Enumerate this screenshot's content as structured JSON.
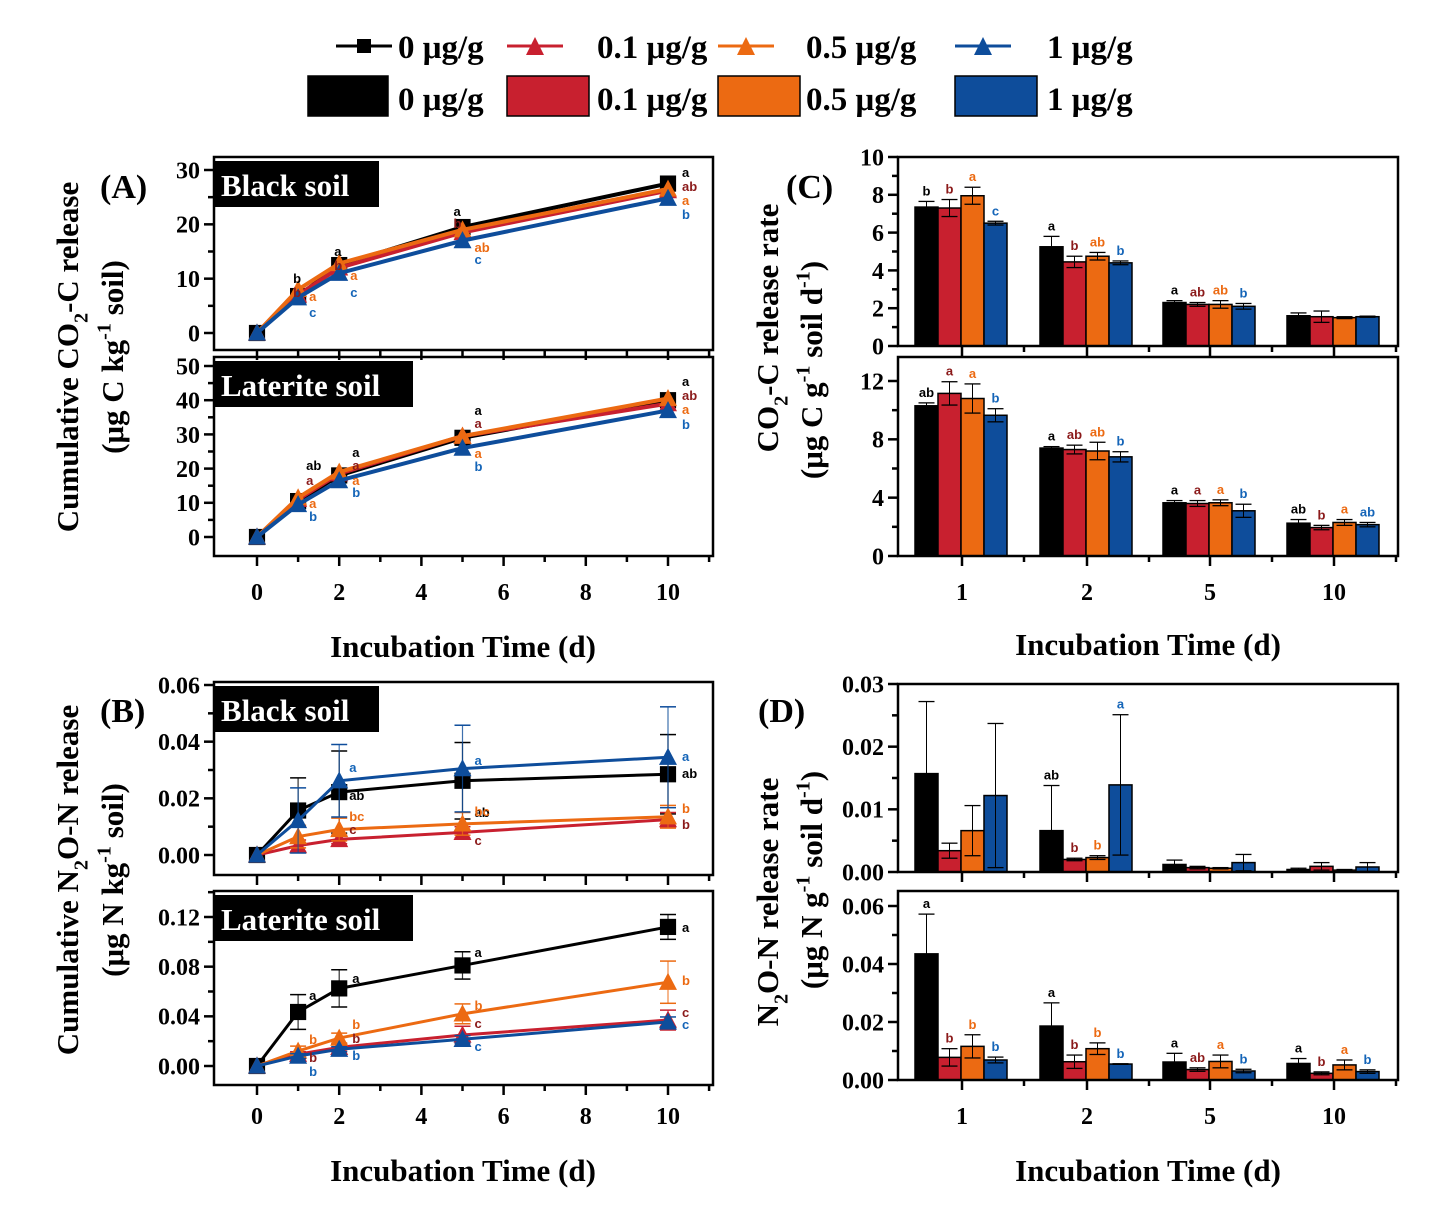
{
  "colors": {
    "0": "#000000",
    "0.1": "#c8202f",
    "0.5": "#ec6a12",
    "1": "#0e4d9b",
    "letter_0": "#000000",
    "letter_0.1": "#8b1a1a",
    "letter_0.5": "#ec6a12",
    "letter_1": "#1565b8"
  },
  "legend": {
    "line_entries": [
      {
        "key": "0",
        "label": "0 μg/g",
        "marker": "square"
      },
      {
        "key": "0.1",
        "label": "0.1 μg/g",
        "marker": "triangle"
      },
      {
        "key": "0.5",
        "label": "0.5 μg/g",
        "marker": "triangle"
      },
      {
        "key": "1",
        "label": "1 μg/g",
        "marker": "triangle"
      }
    ],
    "bar_entries": [
      {
        "key": "0",
        "label": "0 μg/g"
      },
      {
        "key": "0.1",
        "label": "0.1 μg/g"
      },
      {
        "key": "0.5",
        "label": "0.5 μg/g"
      },
      {
        "key": "1",
        "label": "1 μg/g"
      }
    ]
  },
  "chart_data": [
    {
      "panel": "A",
      "type": "line",
      "label": "(A)",
      "ylabel_line1": "Cumulative CO2-C release",
      "ylabel_line2": "(μg C kg-1 soil)",
      "xlabel": "Incubation Time (d)",
      "x": [
        0,
        1,
        2,
        5,
        10
      ],
      "xlim": [
        -1,
        11
      ],
      "xticks": [
        0,
        2,
        4,
        6,
        8,
        10
      ],
      "subplots": [
        {
          "title": "Black soil",
          "ylim": [
            -3,
            32
          ],
          "yticks": [
            0,
            10,
            20,
            30
          ],
          "series": [
            {
              "key": "0",
              "name": "0 μg/g",
              "values": [
                0,
                6.8,
                12.5,
                19.5,
                27.5
              ],
              "letters": [
                "",
                "b",
                "a",
                "a",
                "a"
              ]
            },
            {
              "key": "0.1",
              "name": "0.1 μg/g",
              "values": [
                0,
                7.0,
                12.0,
                18.5,
                26.2
              ],
              "letters": [
                "",
                "b",
                "b",
                "b",
                "ab"
              ]
            },
            {
              "key": "0.5",
              "name": "0.5 μg/g",
              "values": [
                0,
                8.0,
                12.8,
                19.0,
                26.5
              ],
              "letters": [
                "",
                "a",
                "a",
                "ab",
                "a"
              ]
            },
            {
              "key": "1",
              "name": "1 μg/g",
              "values": [
                0,
                6.5,
                11.0,
                17.0,
                24.8
              ],
              "letters": [
                "",
                "c",
                "c",
                "c",
                "b"
              ]
            }
          ]
        },
        {
          "title": "Laterite soil",
          "ylim": [
            -5,
            50
          ],
          "yticks": [
            0,
            10,
            20,
            30,
            40,
            50
          ],
          "series": [
            {
              "key": "0",
              "name": "0 μg/g",
              "values": [
                0,
                10.5,
                18.0,
                29.0,
                40.0
              ],
              "letters": [
                "",
                "ab",
                "a",
                "a",
                "a"
              ]
            },
            {
              "key": "0.1",
              "name": "0.1 μg/g",
              "values": [
                0,
                11.0,
                18.5,
                29.5,
                39.0
              ],
              "letters": [
                "",
                "a",
                "a",
                "a",
                "ab"
              ]
            },
            {
              "key": "0.5",
              "name": "0.5 μg/g",
              "values": [
                0,
                11.5,
                19.0,
                29.5,
                40.5
              ],
              "letters": [
                "",
                "a",
                "a",
                "a",
                "a"
              ]
            },
            {
              "key": "1",
              "name": "1 μg/g",
              "values": [
                0,
                9.5,
                16.5,
                26.0,
                37.0
              ],
              "letters": [
                "",
                "b",
                "b",
                "b",
                "b"
              ]
            }
          ]
        }
      ]
    },
    {
      "panel": "B",
      "type": "line",
      "label": "(B)",
      "ylabel_line1": "Cumulative N2O-N release",
      "ylabel_line2": "(μg N kg-1 soil)",
      "xlabel": "Incubation Time (d)",
      "x": [
        0,
        1,
        2,
        5,
        10
      ],
      "xlim": [
        -1,
        11
      ],
      "xticks": [
        0,
        2,
        4,
        6,
        8,
        10
      ],
      "subplots": [
        {
          "title": "Black soil",
          "ylim": [
            -0.005,
            0.06
          ],
          "yticks": [
            0.0,
            0.02,
            0.04,
            0.06
          ],
          "series": [
            {
              "key": "0",
              "name": "0 μg/g",
              "values": [
                0,
                0.0157,
                0.0222,
                0.0262,
                0.0285
              ],
              "errors": [
                0,
                0.0115,
                0.0145,
                0.0135,
                0.014
              ],
              "letters": [
                "",
                "",
                "ab",
                "ab",
                "ab"
              ]
            },
            {
              "key": "0.1",
              "name": "0.1 μg/g",
              "values": [
                0,
                0.0033,
                0.0055,
                0.008,
                0.0125
              ],
              "errors": [
                0,
                0.002,
                0.0015,
                0.002,
                0.0025
              ],
              "letters": [
                "",
                "",
                "c",
                "c",
                "b"
              ]
            },
            {
              "key": "0.5",
              "name": "0.5 μg/g",
              "values": [
                0,
                0.0065,
                0.009,
                0.011,
                0.0135
              ],
              "errors": [
                0,
                0.004,
                0.004,
                0.004,
                0.004
              ],
              "letters": [
                "",
                "",
                "bc",
                "bc",
                "b"
              ]
            },
            {
              "key": "1",
              "name": "1 μg/g",
              "values": [
                0,
                0.0122,
                0.0262,
                0.0305,
                0.0345
              ],
              "errors": [
                0,
                0.0115,
                0.0128,
                0.0153,
                0.0178
              ],
              "letters": [
                "",
                "",
                "a",
                "a",
                "a"
              ]
            }
          ]
        },
        {
          "title": "Laterite soil",
          "ylim": [
            -0.008,
            0.14
          ],
          "yticks": [
            0.0,
            0.04,
            0.08,
            0.12
          ],
          "series": [
            {
              "key": "0",
              "name": "0 μg/g",
              "values": [
                0,
                0.0435,
                0.0625,
                0.081,
                0.112
              ],
              "errors": [
                0,
                0.014,
                0.015,
                0.011,
                0.01
              ],
              "letters": [
                "",
                "a",
                "a",
                "a",
                "a"
              ]
            },
            {
              "key": "0.1",
              "name": "0.1 μg/g",
              "values": [
                0,
                0.0095,
                0.015,
                0.025,
                0.037
              ],
              "errors": [
                0,
                0.002,
                0.003,
                0.007,
                0.008
              ],
              "letters": [
                "",
                "b",
                "b",
                "c",
                "c"
              ]
            },
            {
              "key": "0.5",
              "name": "0.5 μg/g",
              "values": [
                0,
                0.012,
                0.0225,
                0.042,
                0.0675
              ],
              "errors": [
                0,
                0.004,
                0.004,
                0.008,
                0.017
              ],
              "letters": [
                "",
                "b",
                "b",
                "b",
                "b"
              ]
            },
            {
              "key": "1",
              "name": "1 μg/g",
              "values": [
                0,
                0.008,
                0.0135,
                0.0215,
                0.0355
              ],
              "errors": [
                0,
                0.002,
                0.002,
                0.003,
                0.004
              ],
              "letters": [
                "",
                "b",
                "b",
                "c",
                "c"
              ]
            }
          ]
        }
      ]
    },
    {
      "panel": "C",
      "type": "bar",
      "label": "(C)",
      "ylabel_line1": "CO2-C release rate",
      "ylabel_line2": "(μg C g-1 soil d-1)",
      "xlabel": "Incubation Time (d)",
      "categories": [
        "1",
        "2",
        "5",
        "10"
      ],
      "subplots": [
        {
          "ylim": [
            0,
            10
          ],
          "yticks": [
            0,
            2,
            4,
            6,
            8,
            10
          ],
          "series": [
            {
              "key": "0",
              "name": "0 μg/g",
              "values": [
                7.35,
                5.25,
                2.3,
                1.6
              ],
              "errors": [
                0.3,
                0.55,
                0.1,
                0.15
              ],
              "letters": [
                "b",
                "a",
                "a",
                ""
              ]
            },
            {
              "key": "0.1",
              "name": "0.1 μg/g",
              "values": [
                7.3,
                4.45,
                2.2,
                1.55
              ],
              "errors": [
                0.45,
                0.3,
                0.1,
                0.3
              ],
              "letters": [
                "b",
                "b",
                "ab",
                ""
              ]
            },
            {
              "key": "0.5",
              "name": "0.5 μg/g",
              "values": [
                7.95,
                4.75,
                2.2,
                1.5
              ],
              "errors": [
                0.45,
                0.2,
                0.2,
                0.05
              ],
              "letters": [
                "a",
                "ab",
                "ab",
                ""
              ]
            },
            {
              "key": "1",
              "name": "1 μg/g",
              "values": [
                6.5,
                4.4,
                2.1,
                1.55
              ],
              "errors": [
                0.1,
                0.1,
                0.15,
                0.03
              ],
              "letters": [
                "c",
                "b",
                "b",
                ""
              ]
            }
          ]
        },
        {
          "ylim": [
            0,
            13
          ],
          "yticks": [
            0,
            4,
            8,
            12
          ],
          "series": [
            {
              "key": "0",
              "name": "0 μg/g",
              "values": [
                10.3,
                7.4,
                3.65,
                2.25
              ],
              "errors": [
                0.2,
                0.1,
                0.15,
                0.25
              ],
              "letters": [
                "ab",
                "a",
                "a",
                "ab"
              ]
            },
            {
              "key": "0.1",
              "name": "0.1 μg/g",
              "values": [
                11.15,
                7.3,
                3.6,
                1.95
              ],
              "errors": [
                0.8,
                0.3,
                0.2,
                0.15
              ],
              "letters": [
                "a",
                "ab",
                "a",
                "b"
              ]
            },
            {
              "key": "0.5",
              "name": "0.5 μg/g",
              "values": [
                10.8,
                7.2,
                3.65,
                2.3
              ],
              "errors": [
                1.0,
                0.6,
                0.2,
                0.2
              ],
              "letters": [
                "a",
                "ab",
                "a",
                "a"
              ]
            },
            {
              "key": "1",
              "name": "1 μg/g",
              "values": [
                9.65,
                6.8,
                3.1,
                2.15
              ],
              "errors": [
                0.45,
                0.35,
                0.45,
                0.15
              ],
              "letters": [
                "b",
                "b",
                "b",
                "ab"
              ]
            }
          ]
        }
      ]
    },
    {
      "panel": "D",
      "type": "bar",
      "label": "(D)",
      "ylabel_line1": "N2O-N release rate",
      "ylabel_line2": "(μg N g-1 soil d-1)",
      "xlabel": "Incubation Time (d)",
      "categories": [
        "1",
        "2",
        "5",
        "10"
      ],
      "subplots": [
        {
          "ylim": [
            0,
            0.03
          ],
          "yticks": [
            0.0,
            0.01,
            0.02,
            0.03
          ],
          "series": [
            {
              "key": "0",
              "name": "0 μg/g",
              "values": [
                0.0157,
                0.0066,
                0.0012,
                0.0004
              ],
              "errors": [
                0.0115,
                0.0072,
                0.0007,
                0.0002
              ],
              "letters": [
                "",
                "ab",
                "",
                ""
              ]
            },
            {
              "key": "0.1",
              "name": "0.1 μg/g",
              "values": [
                0.0034,
                0.002,
                0.0007,
                0.0009
              ],
              "errors": [
                0.0012,
                0.0002,
                0.0002,
                0.0006
              ],
              "letters": [
                "",
                "b",
                "",
                ""
              ]
            },
            {
              "key": "0.5",
              "name": "0.5 μg/g",
              "values": [
                0.0066,
                0.0023,
                0.0006,
                0.0003
              ],
              "errors": [
                0.004,
                0.0003,
                0.0001,
                0.0001
              ],
              "letters": [
                "",
                "b",
                "",
                ""
              ]
            },
            {
              "key": "1",
              "name": "1 μg/g",
              "values": [
                0.0122,
                0.0139,
                0.0015,
                0.0008
              ],
              "errors": [
                0.0115,
                0.0112,
                0.0013,
                0.0007
              ],
              "letters": [
                "",
                "a",
                "",
                ""
              ]
            }
          ]
        },
        {
          "ylim": [
            0,
            0.065
          ],
          "yticks": [
            0.0,
            0.02,
            0.04,
            0.06
          ],
          "series": [
            {
              "key": "0",
              "name": "0 μg/g",
              "values": [
                0.0435,
                0.0186,
                0.0062,
                0.0057
              ],
              "errors": [
                0.0137,
                0.008,
                0.003,
                0.0017
              ],
              "letters": [
                "a",
                "a",
                "a",
                "a"
              ]
            },
            {
              "key": "0.1",
              "name": "0.1 μg/g",
              "values": [
                0.0078,
                0.0063,
                0.0036,
                0.0023
              ],
              "errors": [
                0.003,
                0.0023,
                0.0006,
                0.0005
              ],
              "letters": [
                "b",
                "b",
                "ab",
                "b"
              ]
            },
            {
              "key": "0.5",
              "name": "0.5 μg/g",
              "values": [
                0.0116,
                0.0108,
                0.0064,
                0.0052
              ],
              "errors": [
                0.004,
                0.002,
                0.0022,
                0.0017
              ],
              "letters": [
                "b",
                "b",
                "a",
                "a"
              ]
            },
            {
              "key": "1",
              "name": "1 μg/g",
              "values": [
                0.0069,
                0.0055,
                0.0031,
                0.0029
              ],
              "errors": [
                0.001,
                0.0001,
                0.0006,
                0.0006
              ],
              "letters": [
                "b",
                "b",
                "b",
                "b"
              ]
            }
          ]
        }
      ]
    }
  ]
}
